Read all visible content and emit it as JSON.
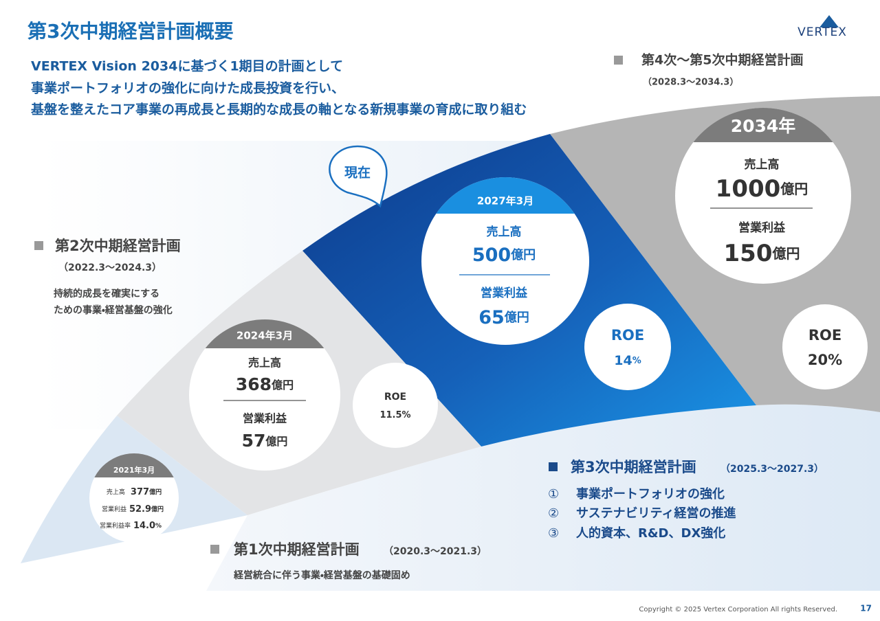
{
  "header": {
    "title": "第3次中期経営計画概要",
    "logo": "VERTEX"
  },
  "lead": [
    "VERTEX Vision 2034に基づく1期目の計画として",
    "事業ポートフォリオの強化に向けた成長投資を行い、",
    "基盤を整えたコア事業の再成長と長期的な成長の軸となる新規事業の育成に取り組む"
  ],
  "current_marker": "現在",
  "plans": [
    {
      "name": "第1次中期経営計画",
      "period": "（2020.3〜2021.3）",
      "desc": [
        "経営統合に伴う事業・経営基盤の基礎固め"
      ]
    },
    {
      "name": "第2次中期経営計画",
      "period": "（2022.3〜2024.3）",
      "desc": [
        "持続的成長を確実にする",
        "ための事業・経営基盤の強化"
      ]
    },
    {
      "name": "第3次中期経営計画",
      "period": "（2025.3〜2027.3）",
      "items": [
        {
          "num": "①",
          "text": "事業ポートフォリオの強化"
        },
        {
          "num": "②",
          "text": "サステナビリティ経営の推進"
        },
        {
          "num": "③",
          "text": "人的資本、R&D、DX強化"
        }
      ]
    },
    {
      "name": "第4次〜第5次中期経営計画",
      "period": "（2028.3〜2034.3）"
    }
  ],
  "snapshots": [
    {
      "date": "2021年3月",
      "rows": [
        {
          "label": "売上高",
          "value": "377",
          "unit": "億円"
        },
        {
          "label": "営業利益",
          "value": "52.9",
          "unit": "億円"
        },
        {
          "label": "営業利益率",
          "value": "14.0",
          "unit": "%"
        }
      ]
    },
    {
      "date": "2024年3月",
      "rows": [
        {
          "label": "売上高",
          "value": "368",
          "unit": "億円"
        },
        {
          "label": "営業利益",
          "value": "57",
          "unit": "億円"
        }
      ],
      "roe": {
        "label": "ROE",
        "value": "11.5",
        "unit": "%"
      }
    },
    {
      "date": "2027年3月",
      "rows": [
        {
          "label": "売上高",
          "value": "500",
          "unit": "億円"
        },
        {
          "label": "営業利益",
          "value": "65",
          "unit": "億円"
        }
      ],
      "roe": {
        "label": "ROE",
        "value": "14",
        "unit": "%"
      }
    },
    {
      "date": "2034年",
      "rows": [
        {
          "label": "売上高",
          "value": "1000",
          "unit": "億円"
        },
        {
          "label": "営業利益",
          "value": "150",
          "unit": "億円"
        }
      ],
      "roe": {
        "label": "ROE",
        "value": "20",
        "unit": "%"
      }
    }
  ],
  "footer": {
    "copyright": "Copyright © 2025 Vertex Corporation All rights Reserved.",
    "page": "17"
  }
}
